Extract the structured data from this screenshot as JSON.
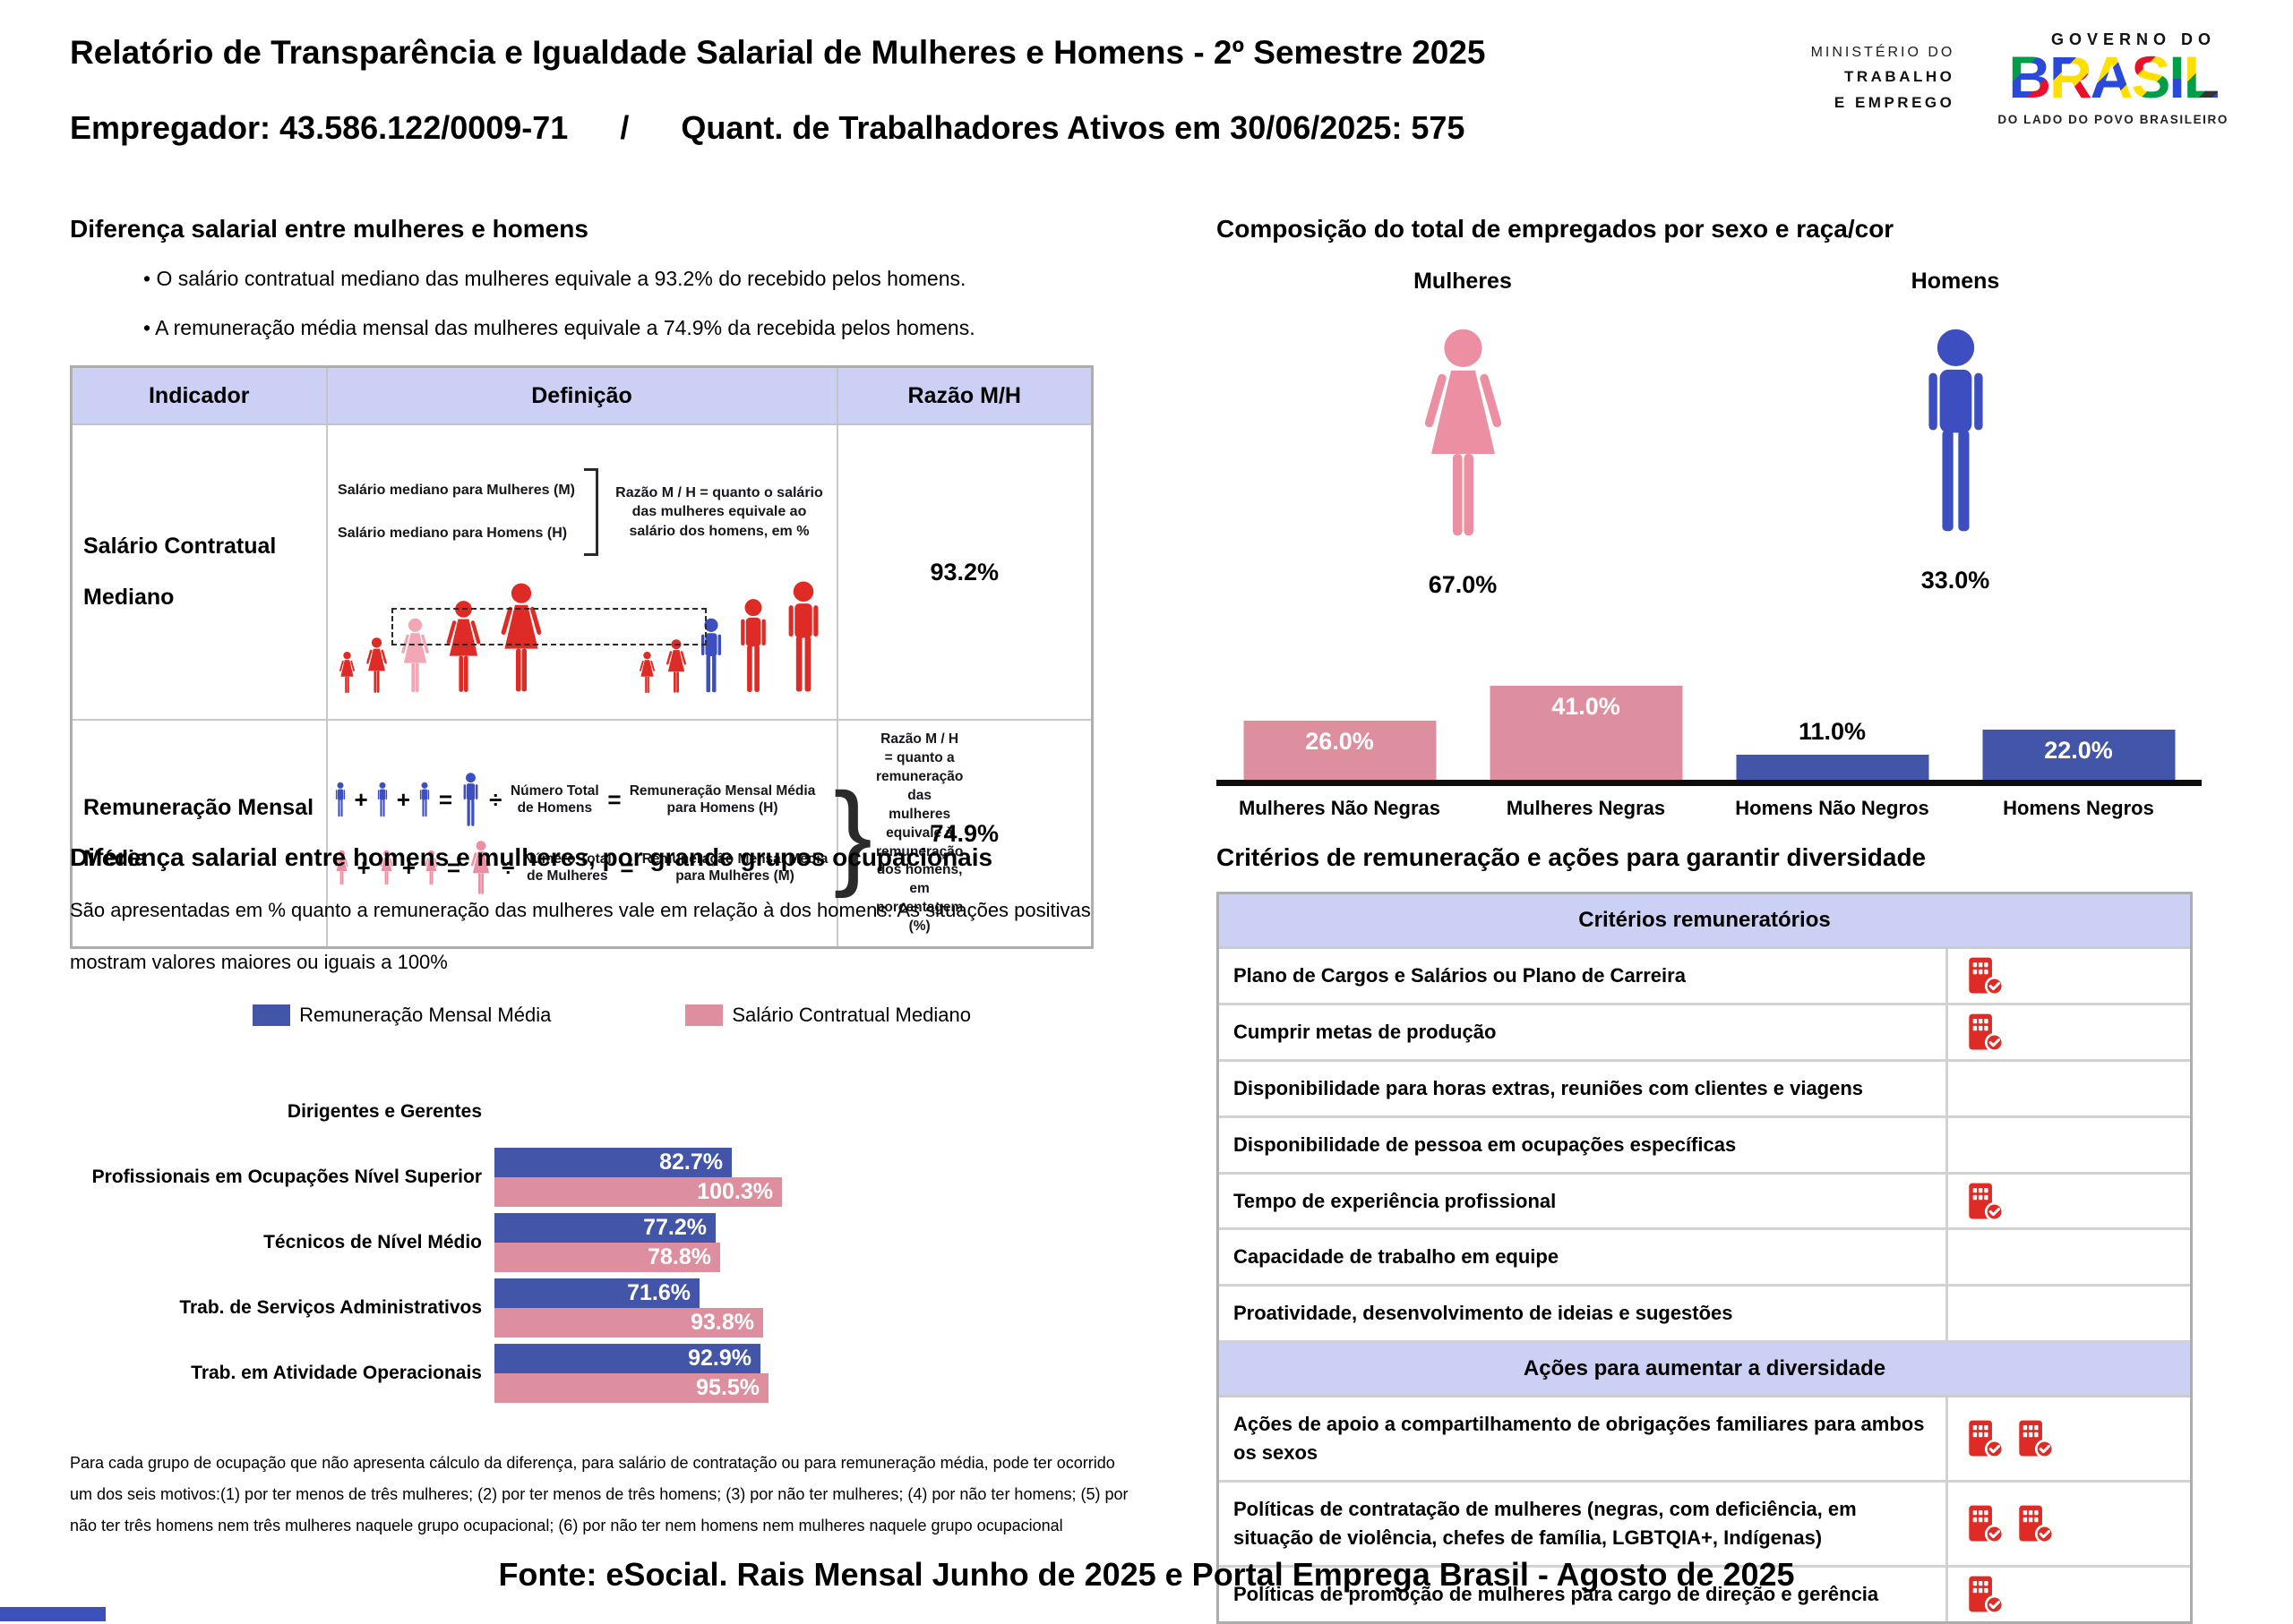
{
  "header": {
    "title_line1": "Relatório de Transparência e Igualdade Salarial de Mulheres e Homens - 2º Semestre 2025",
    "employer_label": "Empregador: 43.586.122/0009-71",
    "separator": "/",
    "active_workers_label": "Quant. de Trabalhadores Ativos em 30/06/2025: 575",
    "ministry_logo": {
      "line1": "MINISTÉRIO DO",
      "line2": "TRABALHO",
      "line3": "E EMPREGO"
    },
    "gov_logo": {
      "top": "GOVERNO DO",
      "word": "BRASIL",
      "letters": [
        "B",
        "R",
        "A",
        "S",
        "I",
        "L"
      ],
      "tagline": "DO LADO DO POVO BRASILEIRO"
    }
  },
  "salary_gap": {
    "heading": "Diferença salarial entre mulheres e homens",
    "bullets": [
      "O salário contratual mediano das mulheres equivale a 93.2% do recebido pelos homens.",
      "A remuneração média mensal das mulheres equivale a 74.9% da recebida pelos homens."
    ],
    "table": {
      "headers": [
        "Indicador",
        "Definição",
        "Razão M/H"
      ],
      "rows": [
        {
          "indicator": "Salário Contratual Mediano",
          "ratio": "93.2%"
        },
        {
          "indicator": "Remuneração Mensal Média",
          "ratio": "74.9%"
        }
      ]
    },
    "median_diagram": {
      "women_line": "Salário mediano para Mulheres (M)",
      "men_line": "Salário mediano para Homens (H)",
      "note": "Razão M / H = quanto o salário das mulheres equivale ao salário dos homens, em %"
    },
    "mean_diagram": {
      "plus": "+",
      "equals": "=",
      "divide": "÷",
      "men_divisor": "Número Total de Homens",
      "men_result": "Remuneração Mensal Média para Homens (H)",
      "women_divisor": "Número Total de Mulheres",
      "women_result": "Remuneração Mensal Média para Mulheres (M)",
      "note": "Razão M / H = quanto a remuneração das mulheres equivale à remuneração dos homens, em porcentagem (%)"
    }
  },
  "composition": {
    "heading": "Composição do total de empregados por sexo e raça/cor",
    "female_label": "Mulheres",
    "female_value": "67.0%",
    "male_label": "Homens",
    "male_value": "33.0%"
  },
  "occupational": {
    "heading": "Diferença salarial entre homens e mulheres, por grande grupos ocupacionais",
    "subtitle_lines": [
      "São apresentadas em % quanto a remuneração das mulheres vale em relação à dos homens. As situações positivas",
      "mostram valores maiores ou iguais a 100%"
    ],
    "footnote": "Para cada grupo de ocupação que não apresenta cálculo da diferença, para salário de contratação ou para remuneração média, pode ter ocorrido um dos seis motivos:(1) por ter menos de três mulheres; (2) por ter menos de três homens; (3) por não ter mulheres; (4) por não ter homens; (5) por não ter três homens nem três mulheres naquele grupo ocupacional; (6) por não ter nem homens nem mulheres naquele grupo ocupacional"
  },
  "criteria": {
    "heading": "Critérios de remuneração e ações para garantir diversidade",
    "sections": [
      {
        "header": "Critérios remuneratórios",
        "rows": [
          {
            "label": "Plano de Cargos e Salários ou Plano de Carreira",
            "icons": 1
          },
          {
            "label": "Cumprir metas de produção",
            "icons": 1
          },
          {
            "label": "Disponibilidade para horas extras, reuniões com clientes e viagens",
            "icons": 0
          },
          {
            "label": "Disponibilidade de pessoa em ocupações específicas",
            "icons": 0
          },
          {
            "label": "Tempo de experiência profissional",
            "icons": 1
          },
          {
            "label": "Capacidade de trabalho em equipe",
            "icons": 0
          },
          {
            "label": "Proatividade, desenvolvimento de ideias e sugestões",
            "icons": 0
          }
        ]
      },
      {
        "header": "Ações para aumentar a diversidade",
        "rows": [
          {
            "label": "Ações de apoio a compartilhamento de obrigações familiares para ambos os sexos",
            "icons": 2
          },
          {
            "label": "Políticas de contratação de mulheres (negras, com deficiência, em situação de violência, chefes de família, LGBTQIA+, Indígenas)",
            "icons": 2
          },
          {
            "label": "Políticas de promoção de mulheres para cargo de direção e gerência",
            "icons": 1
          }
        ]
      }
    ]
  },
  "footer": "Fonte: eSocial. Rais Mensal Junho de 2025 e Portal Emprega Brasil - Agosto de 2025",
  "colors": {
    "bar_pink": "#DD8FA0",
    "bar_blue": "#4355A9",
    "icon_pink": "#EC8FA3",
    "icon_blue": "#3D4FC0",
    "figure_red": "#DF2B25",
    "figure_light_pink": "#F2A6B6",
    "table_header_bg": "#CBD0F4",
    "criteria_icon_red": "#DF2B25"
  },
  "chart_data": [
    {
      "id": "composition-by-sex-race",
      "type": "bar",
      "title": "Composição do total de empregados por sexo e raça/cor",
      "categories": [
        "Mulheres Não Negras",
        "Mulheres Negras",
        "Homens Não Negros",
        "Homens Negros"
      ],
      "values": [
        26.0,
        41.0,
        11.0,
        22.0
      ],
      "labels": [
        "26.0%",
        "41.0%",
        "11.0%",
        "22.0%"
      ],
      "bar_colors": [
        "#DD8FA0",
        "#DD8FA0",
        "#4355A9",
        "#4355A9"
      ],
      "unit": "%",
      "ylim": [
        0,
        45
      ],
      "grid": false,
      "summary": {
        "Mulheres": 67.0,
        "Homens": 33.0
      }
    },
    {
      "id": "pay-ratio-by-occupational-group",
      "type": "bar",
      "orientation": "horizontal",
      "title": "Diferença salarial entre homens e mulheres, por grande grupos ocupacionais",
      "categories": [
        "Dirigentes e Gerentes",
        "Profissionais em Ocupações Nível Superior",
        "Técnicos de Nível Médio",
        "Trab. de Serviços Administrativos",
        "Trab. em Atividade Operacionais"
      ],
      "series": [
        {
          "name": "Remuneração Mensal Média",
          "color": "#4355A9",
          "values": [
            null,
            82.7,
            77.2,
            71.6,
            92.9
          ]
        },
        {
          "name": "Salário Contratual Mediano",
          "color": "#DD8FA0",
          "values": [
            null,
            100.3,
            78.8,
            93.8,
            95.5
          ]
        }
      ],
      "value_suffix": "%",
      "xlim": [
        0,
        105
      ],
      "grid": false,
      "legend_position": "top"
    }
  ]
}
